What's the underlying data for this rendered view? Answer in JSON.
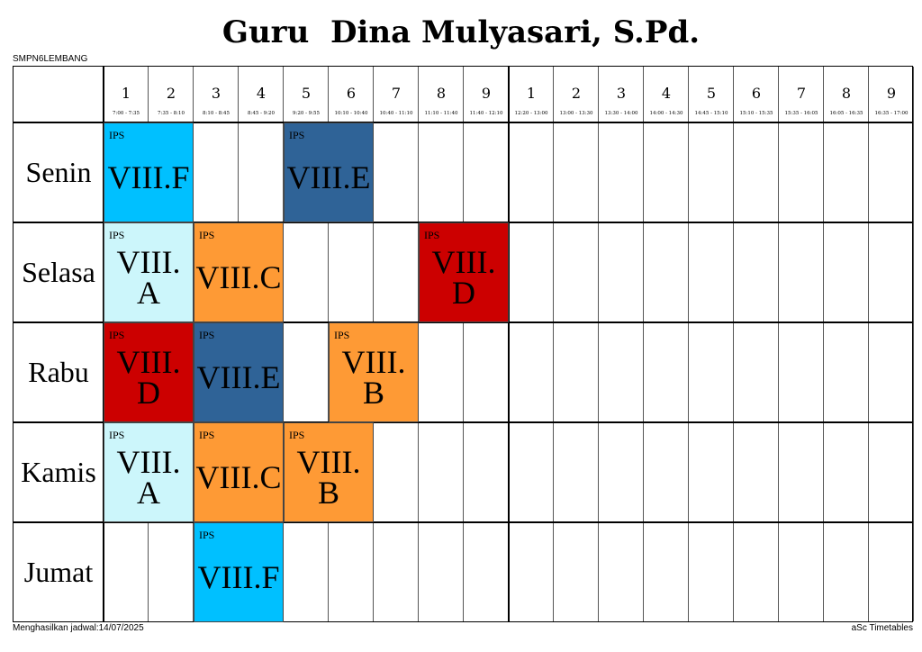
{
  "title": "Guru  Dina Mulyasari, S.Pd.",
  "school": "SMPN6LEMBANG",
  "footer_left": "Menghasilkan jadwal:14/07/2025",
  "footer_right": "aSc Timetables",
  "periods": [
    {
      "num": "1",
      "time": "7:00 - 7:35"
    },
    {
      "num": "2",
      "time": "7:35 - 8:10"
    },
    {
      "num": "3",
      "time": "8:10 - 8:45"
    },
    {
      "num": "4",
      "time": "8:45 - 9:20"
    },
    {
      "num": "5",
      "time": "9:20 - 9:55"
    },
    {
      "num": "6",
      "time": "10:10 - 10:40"
    },
    {
      "num": "7",
      "time": "10:40 - 11:10"
    },
    {
      "num": "8",
      "time": "11:10 - 11:40"
    },
    {
      "num": "9",
      "time": "11:40 - 12:10"
    },
    {
      "num": "1",
      "time": "12:20 - 13:00"
    },
    {
      "num": "2",
      "time": "13:00 - 13:30"
    },
    {
      "num": "3",
      "time": "13:30 - 14:00"
    },
    {
      "num": "4",
      "time": "14:00 - 14:30"
    },
    {
      "num": "5",
      "time": "14:45 - 15:10"
    },
    {
      "num": "6",
      "time": "15:10 - 15:35"
    },
    {
      "num": "7",
      "time": "15:35 - 16:05"
    },
    {
      "num": "8",
      "time": "16:05 - 16:35"
    },
    {
      "num": "9",
      "time": "16:35 - 17:00"
    }
  ],
  "days": [
    "Senin",
    "Selasa",
    "Rabu",
    "Kamis",
    "Jumat"
  ],
  "colors": {
    "VIII.F": "#00c0ff",
    "VIII.E": "#2f6397",
    "VIII.A": "#ccf6fb",
    "VIII.C": "#fe9a35",
    "VIII.B": "#fe9a35",
    "VIII.D": "#cc0000"
  },
  "lessons": [
    {
      "day": 0,
      "start_period": 1,
      "periods": 2,
      "subject": "IPS",
      "class": "VIII.F",
      "color_key": "VIII.F"
    },
    {
      "day": 0,
      "start_period": 5,
      "periods": 2,
      "subject": "IPS",
      "class": "VIII.E",
      "color_key": "VIII.E"
    },
    {
      "day": 1,
      "start_period": 1,
      "periods": 2,
      "subject": "IPS",
      "class": "VIII. A",
      "color_key": "VIII.A"
    },
    {
      "day": 1,
      "start_period": 3,
      "periods": 2,
      "subject": "IPS",
      "class": "VIII.C",
      "color_key": "VIII.C"
    },
    {
      "day": 1,
      "start_period": 8,
      "periods": 2,
      "subject": "IPS",
      "class": "VIII. D",
      "color_key": "VIII.D"
    },
    {
      "day": 2,
      "start_period": 1,
      "periods": 2,
      "subject": "IPS",
      "class": "VIII. D",
      "color_key": "VIII.D"
    },
    {
      "day": 2,
      "start_period": 3,
      "periods": 2,
      "subject": "IPS",
      "class": "VIII.E",
      "color_key": "VIII.E"
    },
    {
      "day": 2,
      "start_period": 6,
      "periods": 2,
      "subject": "IPS",
      "class": "VIII. B",
      "color_key": "VIII.B"
    },
    {
      "day": 3,
      "start_period": 1,
      "periods": 2,
      "subject": "IPS",
      "class": "VIII. A",
      "color_key": "VIII.A"
    },
    {
      "day": 3,
      "start_period": 3,
      "periods": 2,
      "subject": "IPS",
      "class": "VIII.C",
      "color_key": "VIII.C"
    },
    {
      "day": 3,
      "start_period": 5,
      "periods": 2,
      "subject": "IPS",
      "class": "VIII. B",
      "color_key": "VIII.B"
    },
    {
      "day": 4,
      "start_period": 3,
      "periods": 2,
      "subject": "IPS",
      "class": "VIII.F",
      "color_key": "VIII.F"
    }
  ]
}
